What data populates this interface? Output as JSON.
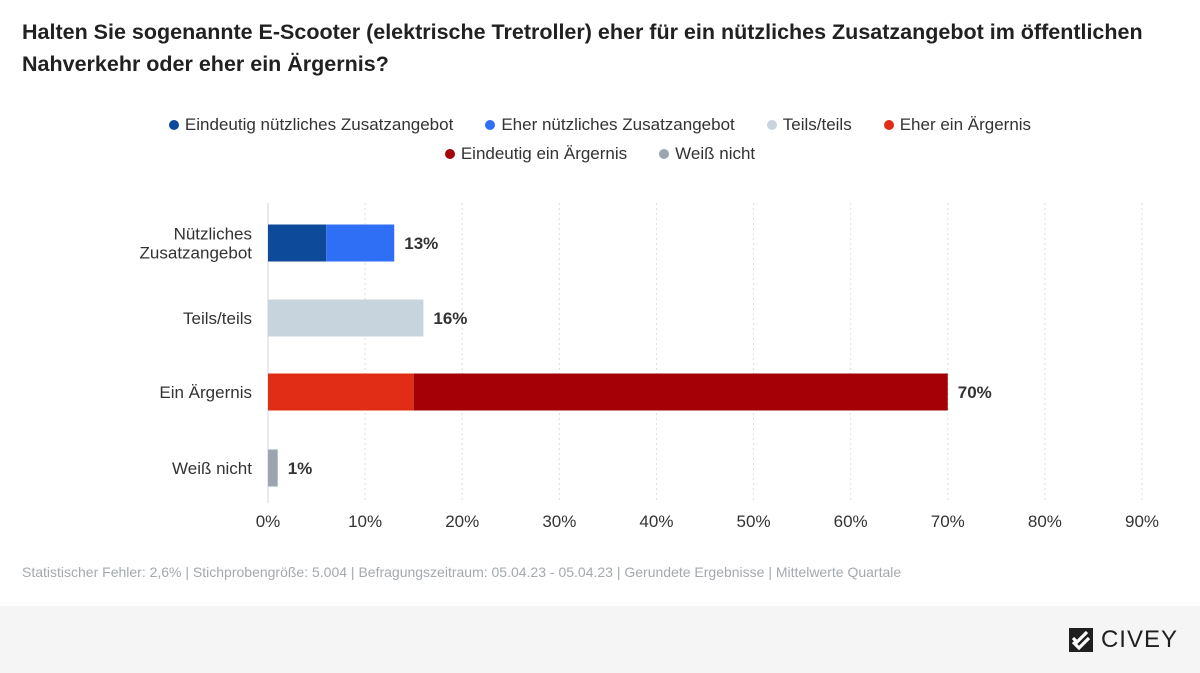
{
  "title": "Halten Sie sogenannte E-Scooter (elektrische Tretroller) eher für ein nützliches Zusatzangebot im öffentlichen Nahverkehr oder eher ein Ärgernis?",
  "legend": [
    {
      "label": "Eindeutig nützliches Zusatzangebot",
      "color": "#0d4a9a"
    },
    {
      "label": "Eher nützliches Zusatzangebot",
      "color": "#2f6ff5"
    },
    {
      "label": "Teils/teils",
      "color": "#c8d4dd"
    },
    {
      "label": "Eher ein Ärgernis",
      "color": "#e12d15"
    },
    {
      "label": "Eindeutig ein Ärgernis",
      "color": "#a50006"
    },
    {
      "label": "Weiß nicht",
      "color": "#9ca5ae"
    }
  ],
  "chart_data": {
    "type": "bar",
    "orientation": "horizontal",
    "stacked": true,
    "categories": [
      "Nützliches Zusatzangebot",
      "Teils/teils",
      "Ein Ärgernis",
      "Weiß nicht"
    ],
    "category_lines": [
      [
        "Nützliches",
        "Zusatzangebot"
      ],
      [
        "Teils/teils"
      ],
      [
        "Ein Ärgernis"
      ],
      [
        "Weiß nicht"
      ]
    ],
    "series": [
      {
        "name": "Eindeutig nützliches Zusatzangebot",
        "color": "#0d4a9a",
        "values": [
          6,
          0,
          0,
          0
        ]
      },
      {
        "name": "Eher nützliches Zusatzangebot",
        "color": "#2f6ff5",
        "values": [
          7,
          0,
          0,
          0
        ]
      },
      {
        "name": "Teils/teils",
        "color": "#c8d4dd",
        "values": [
          0,
          16,
          0,
          0
        ]
      },
      {
        "name": "Eher ein Ärgernis",
        "color": "#e12d15",
        "values": [
          0,
          0,
          15,
          0
        ]
      },
      {
        "name": "Eindeutig ein Ärgernis",
        "color": "#a50006",
        "values": [
          0,
          0,
          55,
          0
        ]
      },
      {
        "name": "Weiß nicht",
        "color": "#9ca5ae",
        "values": [
          0,
          0,
          0,
          1
        ]
      }
    ],
    "totals": [
      13,
      16,
      70,
      1
    ],
    "total_labels": [
      "13%",
      "16%",
      "70%",
      "1%"
    ],
    "xlim": [
      0,
      90
    ],
    "xticks": [
      0,
      10,
      20,
      30,
      40,
      50,
      60,
      70,
      80,
      90
    ],
    "xtick_labels": [
      "0%",
      "10%",
      "20%",
      "30%",
      "40%",
      "50%",
      "60%",
      "70%",
      "80%",
      "90%"
    ],
    "grid": true,
    "legend_position": "top"
  },
  "footnote": "Statistischer Fehler: 2,6% | Stichprobengröße: 5.004 | Befragungszeitraum: 05.04.23 - 05.04.23 | Gerundete Ergebnisse | Mittelwerte Quartale",
  "brand": {
    "name": "CIVEY"
  }
}
